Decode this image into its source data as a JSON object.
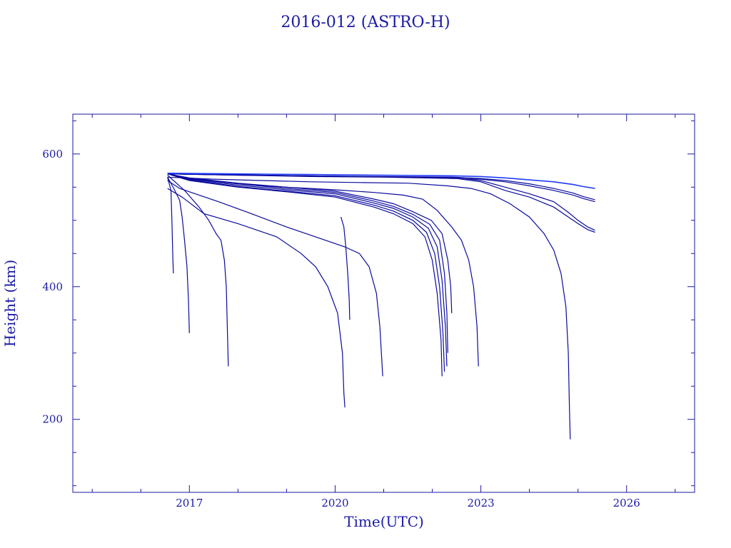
{
  "chart_data": {
    "type": "line",
    "title": "2016-012 (ASTRO-H)",
    "xlabel": "Time(UTC)",
    "ylabel": "Height (km)",
    "xlim": [
      2014.6,
      2027.4
    ],
    "ylim": [
      90,
      660
    ],
    "x_ticks": [
      2017,
      2020,
      2023,
      2026
    ],
    "y_ticks": [
      200,
      400,
      600
    ],
    "grid": false,
    "colors": {
      "axis": "#1a1aa6",
      "line": "#0a0a9e",
      "highlight": "#1f3cff"
    },
    "series": [
      {
        "points": [
          [
            2016.55,
            565
          ],
          [
            2016.62,
            545
          ],
          [
            2016.64,
            500
          ],
          [
            2016.66,
            440
          ],
          [
            2016.67,
            420
          ]
        ]
      },
      {
        "points": [
          [
            2016.55,
            565
          ],
          [
            2016.68,
            548
          ],
          [
            2016.8,
            530
          ],
          [
            2016.85,
            505
          ],
          [
            2016.9,
            470
          ],
          [
            2016.95,
            430
          ],
          [
            2016.98,
            380
          ],
          [
            2017.0,
            330
          ]
        ]
      },
      {
        "points": [
          [
            2016.55,
            568
          ],
          [
            2016.9,
            545
          ],
          [
            2017.2,
            520
          ],
          [
            2017.4,
            500
          ],
          [
            2017.55,
            480
          ],
          [
            2017.65,
            470
          ],
          [
            2017.72,
            440
          ],
          [
            2017.76,
            400
          ],
          [
            2017.78,
            340
          ],
          [
            2017.8,
            280
          ]
        ]
      },
      {
        "points": [
          [
            2016.55,
            548
          ],
          [
            2016.85,
            535
          ],
          [
            2017.3,
            510
          ],
          [
            2018.0,
            495
          ],
          [
            2018.8,
            475
          ],
          [
            2019.3,
            450
          ],
          [
            2019.6,
            430
          ],
          [
            2019.85,
            400
          ],
          [
            2020.05,
            360
          ],
          [
            2020.15,
            300
          ],
          [
            2020.18,
            240
          ],
          [
            2020.2,
            218
          ]
        ]
      },
      {
        "points": [
          [
            2020.12,
            505
          ],
          [
            2020.18,
            490
          ],
          [
            2020.22,
            460
          ],
          [
            2020.26,
            420
          ],
          [
            2020.29,
            380
          ],
          [
            2020.3,
            350
          ]
        ]
      },
      {
        "points": [
          [
            2016.55,
            560
          ],
          [
            2016.8,
            548
          ],
          [
            2017.2,
            538
          ],
          [
            2017.6,
            528
          ],
          [
            2018.2,
            512
          ],
          [
            2019.0,
            490
          ],
          [
            2019.8,
            470
          ],
          [
            2020.2,
            460
          ],
          [
            2020.5,
            450
          ],
          [
            2020.7,
            430
          ],
          [
            2020.85,
            390
          ],
          [
            2020.92,
            340
          ],
          [
            2020.96,
            290
          ],
          [
            2020.98,
            265
          ]
        ]
      },
      {
        "points": [
          [
            2016.55,
            570
          ],
          [
            2017.0,
            560
          ],
          [
            2018.0,
            550
          ],
          [
            2019.0,
            543
          ],
          [
            2020.0,
            535
          ],
          [
            2020.8,
            520
          ],
          [
            2021.2,
            510
          ],
          [
            2021.6,
            495
          ],
          [
            2021.85,
            475
          ],
          [
            2022.0,
            440
          ],
          [
            2022.1,
            390
          ],
          [
            2022.18,
            320
          ],
          [
            2022.2,
            265
          ]
        ]
      },
      {
        "points": [
          [
            2016.55,
            570
          ],
          [
            2017.0,
            561
          ],
          [
            2018.0,
            551
          ],
          [
            2019.0,
            544
          ],
          [
            2020.0,
            537
          ],
          [
            2020.8,
            523
          ],
          [
            2021.2,
            514
          ],
          [
            2021.6,
            500
          ],
          [
            2021.88,
            482
          ],
          [
            2022.05,
            450
          ],
          [
            2022.15,
            400
          ],
          [
            2022.22,
            330
          ],
          [
            2022.25,
            272
          ]
        ]
      },
      {
        "points": [
          [
            2016.55,
            570
          ],
          [
            2017.0,
            562
          ],
          [
            2018.0,
            553
          ],
          [
            2019.0,
            546
          ],
          [
            2020.0,
            540
          ],
          [
            2020.8,
            526
          ],
          [
            2021.2,
            518
          ],
          [
            2021.6,
            505
          ],
          [
            2021.92,
            488
          ],
          [
            2022.1,
            460
          ],
          [
            2022.2,
            410
          ],
          [
            2022.27,
            340
          ],
          [
            2022.3,
            280
          ]
        ]
      },
      {
        "points": [
          [
            2016.55,
            570
          ],
          [
            2017.0,
            563
          ],
          [
            2018.0,
            555
          ],
          [
            2019.0,
            548
          ],
          [
            2020.0,
            542
          ],
          [
            2020.8,
            529
          ],
          [
            2021.2,
            521
          ],
          [
            2021.6,
            509
          ],
          [
            2021.95,
            494
          ],
          [
            2022.15,
            470
          ],
          [
            2022.25,
            420
          ],
          [
            2022.3,
            360
          ],
          [
            2022.32,
            300
          ]
        ]
      },
      {
        "points": [
          [
            2016.55,
            570
          ],
          [
            2017.0,
            564
          ],
          [
            2018.0,
            556
          ],
          [
            2019.0,
            550
          ],
          [
            2020.0,
            544
          ],
          [
            2020.8,
            532
          ],
          [
            2021.2,
            525
          ],
          [
            2021.6,
            513
          ],
          [
            2021.98,
            500
          ],
          [
            2022.2,
            480
          ],
          [
            2022.32,
            440
          ],
          [
            2022.38,
            400
          ],
          [
            2022.4,
            360
          ]
        ]
      },
      {
        "points": [
          [
            2016.55,
            570
          ],
          [
            2017.0,
            563
          ],
          [
            2018.0,
            555
          ],
          [
            2019.0,
            550
          ],
          [
            2020.0,
            546
          ],
          [
            2020.8,
            542
          ],
          [
            2021.4,
            538
          ],
          [
            2021.8,
            532
          ],
          [
            2022.1,
            515
          ],
          [
            2022.4,
            490
          ],
          [
            2022.6,
            470
          ],
          [
            2022.75,
            440
          ],
          [
            2022.85,
            400
          ],
          [
            2022.92,
            340
          ],
          [
            2022.95,
            280
          ]
        ]
      },
      {
        "points": [
          [
            2016.55,
            565
          ],
          [
            2017.5,
            562
          ],
          [
            2018.5,
            560
          ],
          [
            2019.5,
            558
          ],
          [
            2020.5,
            557
          ],
          [
            2021.5,
            556
          ],
          [
            2022.3,
            552
          ],
          [
            2022.8,
            548
          ],
          [
            2023.2,
            540
          ],
          [
            2023.6,
            525
          ],
          [
            2024.0,
            505
          ],
          [
            2024.3,
            480
          ],
          [
            2024.5,
            455
          ],
          [
            2024.65,
            420
          ],
          [
            2024.75,
            370
          ],
          [
            2024.8,
            300
          ],
          [
            2024.82,
            230
          ],
          [
            2024.84,
            170
          ]
        ]
      },
      {
        "points": [
          [
            2016.55,
            570
          ],
          [
            2017.5,
            569
          ],
          [
            2018.5,
            568
          ],
          [
            2019.5,
            567
          ],
          [
            2020.5,
            566
          ],
          [
            2021.5,
            565
          ],
          [
            2022.5,
            563
          ],
          [
            2023.0,
            558
          ],
          [
            2023.5,
            545
          ],
          [
            2024.0,
            535
          ],
          [
            2024.5,
            520
          ],
          [
            2024.8,
            505
          ],
          [
            2025.0,
            495
          ],
          [
            2025.2,
            486
          ],
          [
            2025.35,
            482
          ]
        ]
      },
      {
        "points": [
          [
            2016.55,
            570
          ],
          [
            2017.5,
            569
          ],
          [
            2018.5,
            568
          ],
          [
            2019.5,
            567
          ],
          [
            2020.5,
            566
          ],
          [
            2021.5,
            565
          ],
          [
            2022.5,
            564
          ],
          [
            2023.0,
            560
          ],
          [
            2023.5,
            550
          ],
          [
            2024.0,
            540
          ],
          [
            2024.5,
            528
          ],
          [
            2024.8,
            512
          ],
          [
            2025.0,
            500
          ],
          [
            2025.2,
            490
          ],
          [
            2025.35,
            485
          ]
        ]
      },
      {
        "points": [
          [
            2016.55,
            570
          ],
          [
            2018.0,
            568
          ],
          [
            2019.5,
            566
          ],
          [
            2021.0,
            565
          ],
          [
            2022.5,
            563
          ],
          [
            2023.0,
            562
          ],
          [
            2023.5,
            558
          ],
          [
            2024.0,
            552
          ],
          [
            2024.5,
            545
          ],
          [
            2024.9,
            538
          ],
          [
            2025.1,
            533
          ],
          [
            2025.35,
            528
          ]
        ]
      },
      {
        "points": [
          [
            2016.55,
            570
          ],
          [
            2018.0,
            568
          ],
          [
            2019.5,
            567
          ],
          [
            2021.0,
            566
          ],
          [
            2022.5,
            565
          ],
          [
            2023.0,
            563
          ],
          [
            2023.5,
            560
          ],
          [
            2024.0,
            555
          ],
          [
            2024.5,
            548
          ],
          [
            2024.9,
            541
          ],
          [
            2025.1,
            536
          ],
          [
            2025.35,
            531
          ]
        ]
      },
      {
        "highlight": true,
        "points": [
          [
            2016.55,
            571
          ],
          [
            2018.0,
            570
          ],
          [
            2019.5,
            569
          ],
          [
            2021.0,
            568
          ],
          [
            2022.5,
            567
          ],
          [
            2023.0,
            566
          ],
          [
            2023.5,
            564
          ],
          [
            2024.0,
            561
          ],
          [
            2024.5,
            558
          ],
          [
            2024.9,
            554
          ],
          [
            2025.1,
            551
          ],
          [
            2025.35,
            548
          ]
        ]
      }
    ]
  }
}
